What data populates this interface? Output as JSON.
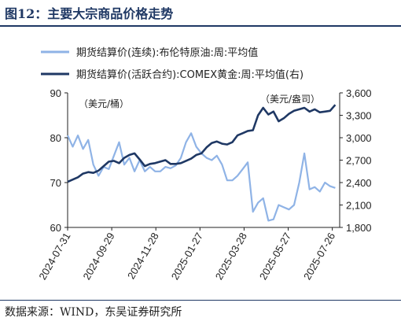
{
  "header": {
    "figure_title": "图12：主要大宗商品价格走势"
  },
  "footer": {
    "source": "数据来源：WIND，东吴证券研究所"
  },
  "colors": {
    "brent": "#8fb3e6",
    "comex": "#1f3864",
    "title": "#1f3864"
  },
  "chart_data": {
    "type": "line",
    "title": "",
    "legend_position": "top",
    "grid": false,
    "left_axis": {
      "unit_label": "（美元/桶）",
      "ylim": [
        60,
        90
      ],
      "ticks": [
        60,
        70,
        80,
        90
      ]
    },
    "right_axis": {
      "unit_label": "（美元/盎司）",
      "ylim": [
        1800,
        3600
      ],
      "ticks": [
        1800,
        2100,
        2400,
        2700,
        3000,
        3300,
        3600
      ],
      "tick_labels": [
        "1,800",
        "2,100",
        "2,400",
        "2,700",
        "3,000",
        "3,300",
        "3,600"
      ]
    },
    "x_tick_labels": [
      "2024-07-31",
      "2024-09-29",
      "2024-11-28",
      "2025-01-27",
      "2025-03-28",
      "2025-05-27",
      "2025-07-26"
    ],
    "x_range": [
      "2024-07-31",
      "2025-08-05"
    ],
    "series": [
      {
        "name": "期货结算价(连续):布伦特原油:周:平均值",
        "axis": "left",
        "style": "line",
        "x": [
          "2024-07-31",
          "2024-08-07",
          "2024-08-14",
          "2024-08-21",
          "2024-08-28",
          "2024-09-04",
          "2024-09-11",
          "2024-09-18",
          "2024-09-25",
          "2024-10-02",
          "2024-10-09",
          "2024-10-16",
          "2024-10-23",
          "2024-10-30",
          "2024-11-06",
          "2024-11-13",
          "2024-11-20",
          "2024-11-27",
          "2024-12-04",
          "2024-12-11",
          "2024-12-18",
          "2024-12-25",
          "2025-01-01",
          "2025-01-08",
          "2025-01-15",
          "2025-01-22",
          "2025-01-29",
          "2025-02-05",
          "2025-02-12",
          "2025-02-19",
          "2025-02-26",
          "2025-03-05",
          "2025-03-12",
          "2025-03-19",
          "2025-03-26",
          "2025-04-02",
          "2025-04-09",
          "2025-04-16",
          "2025-04-23",
          "2025-04-30",
          "2025-05-07",
          "2025-05-14",
          "2025-05-21",
          "2025-05-28",
          "2025-06-04",
          "2025-06-11",
          "2025-06-18",
          "2025-06-25",
          "2025-07-02",
          "2025-07-09",
          "2025-07-16",
          "2025-07-23",
          "2025-07-30"
        ],
        "y": [
          80.5,
          78,
          80.5,
          77.5,
          79.5,
          74,
          71.5,
          73.5,
          73,
          76,
          79,
          74,
          75.5,
          72.5,
          75,
          72.5,
          73.5,
          72.5,
          72.5,
          73.5,
          73.2,
          73.8,
          75.5,
          79,
          81,
          78,
          76.5,
          75.5,
          75,
          76,
          74,
          70.5,
          70.5,
          71.5,
          73,
          74.5,
          63.5,
          65.5,
          66.5,
          61.5,
          61.8,
          65,
          64.5,
          64,
          65,
          70,
          76.5,
          68.5,
          69,
          68,
          70,
          69.2,
          68.8
        ]
      },
      {
        "name": "期货结算价(活跃合约):COMEX黄金:周:平均值(右)",
        "axis": "right",
        "style": "line",
        "x": [
          "2024-07-31",
          "2024-08-07",
          "2024-08-14",
          "2024-08-21",
          "2024-08-28",
          "2024-09-04",
          "2024-09-11",
          "2024-09-18",
          "2024-09-25",
          "2024-10-02",
          "2024-10-09",
          "2024-10-16",
          "2024-10-23",
          "2024-10-30",
          "2024-11-06",
          "2024-11-13",
          "2024-11-20",
          "2024-11-27",
          "2024-12-04",
          "2024-12-11",
          "2024-12-18",
          "2024-12-25",
          "2025-01-01",
          "2025-01-08",
          "2025-01-15",
          "2025-01-22",
          "2025-01-29",
          "2025-02-05",
          "2025-02-12",
          "2025-02-19",
          "2025-02-26",
          "2025-03-05",
          "2025-03-12",
          "2025-03-19",
          "2025-03-26",
          "2025-04-02",
          "2025-04-09",
          "2025-04-16",
          "2025-04-23",
          "2025-04-30",
          "2025-05-07",
          "2025-05-14",
          "2025-05-21",
          "2025-05-28",
          "2025-06-04",
          "2025-06-11",
          "2025-06-18",
          "2025-06-25",
          "2025-07-02",
          "2025-07-09",
          "2025-07-16",
          "2025-07-23",
          "2025-07-30"
        ],
        "y": [
          2410,
          2440,
          2470,
          2520,
          2540,
          2530,
          2560,
          2620,
          2680,
          2690,
          2660,
          2730,
          2770,
          2790,
          2710,
          2620,
          2650,
          2660,
          2680,
          2700,
          2650,
          2650,
          2660,
          2690,
          2720,
          2770,
          2790,
          2870,
          2930,
          2950,
          2920,
          2910,
          2940,
          3030,
          3060,
          3090,
          3100,
          3300,
          3400,
          3310,
          3350,
          3220,
          3260,
          3320,
          3360,
          3380,
          3400,
          3350,
          3380,
          3340,
          3350,
          3360,
          3440
        ]
      }
    ]
  }
}
